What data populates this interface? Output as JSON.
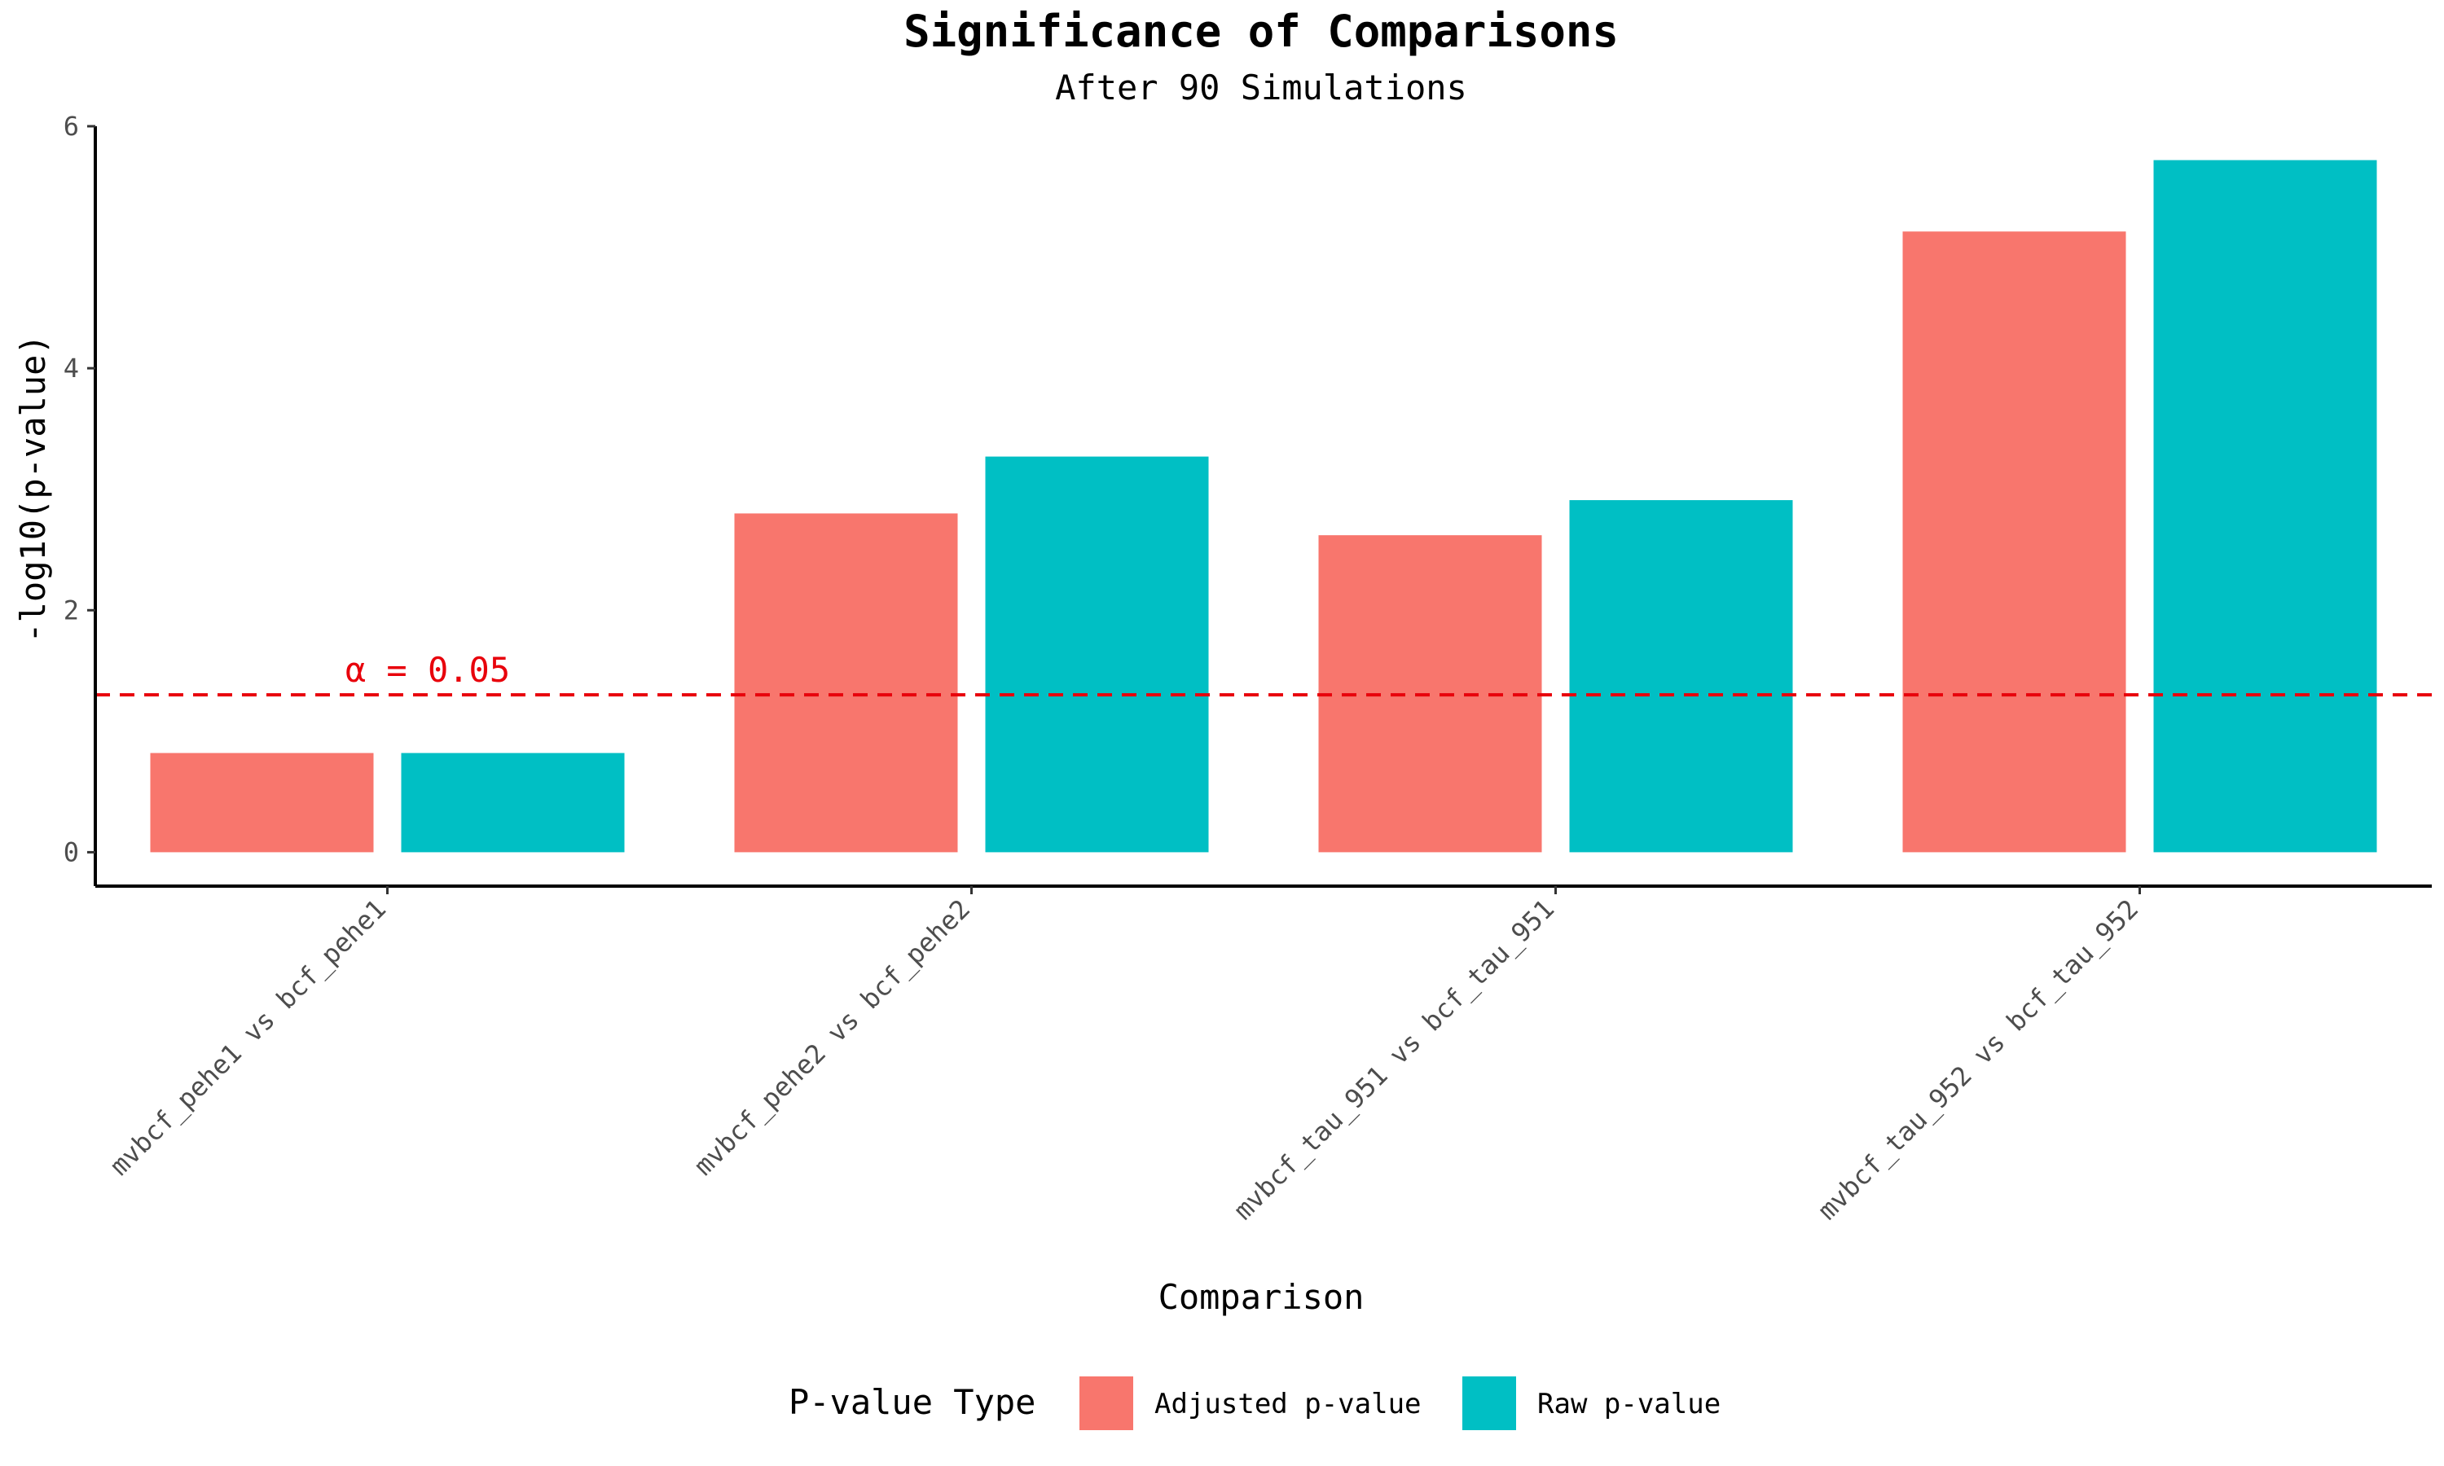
{
  "chart_data": {
    "type": "bar",
    "title": "Significance of Comparisons",
    "subtitle": "After 90 Simulations",
    "xlabel": "Comparison",
    "ylabel": "-log10(p-value)",
    "ylim": [
      -0.28,
      6.0
    ],
    "yticks": [
      0,
      2,
      4,
      6
    ],
    "grid": false,
    "categories": [
      "mvbcf_pehe1 vs bcf_pehe1",
      "mvbcf_pehe2 vs bcf_pehe2",
      "mvbcf_tau_951 vs bcf_tau_951",
      "mvbcf_tau_952 vs bcf_tau_952"
    ],
    "series": [
      {
        "name": "Adjusted p-value",
        "color": "#F8766D",
        "values": [
          0.82,
          2.8,
          2.62,
          5.13
        ]
      },
      {
        "name": "Raw p-value",
        "color": "#00BFC4",
        "values": [
          0.82,
          3.27,
          2.91,
          5.72
        ]
      }
    ],
    "reference_line": {
      "value": 1.301,
      "label": "α = 0.05",
      "color": "#E8000B",
      "style": "dashed"
    },
    "legend": {
      "title": "P-value Type",
      "position": "bottom"
    }
  }
}
